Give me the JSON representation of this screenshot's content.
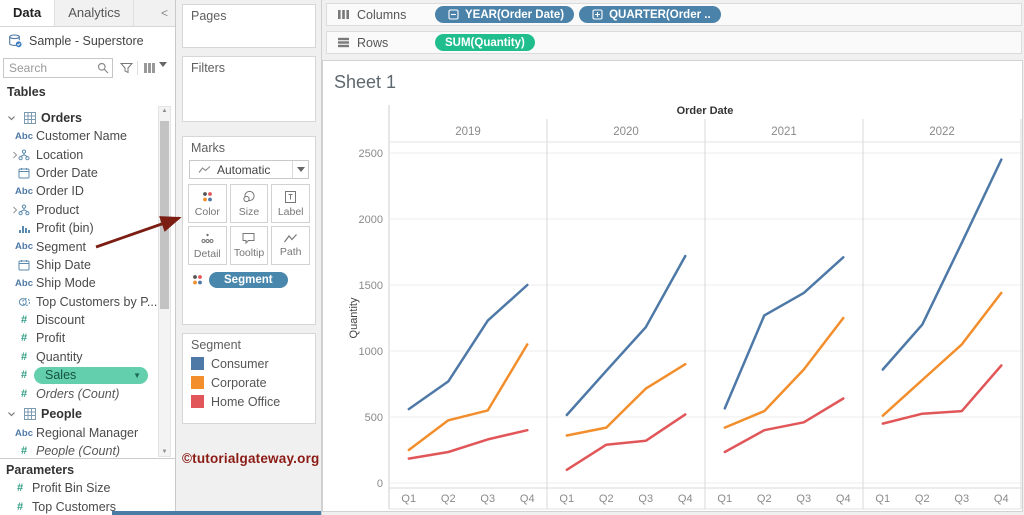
{
  "sidebar": {
    "tabs": [
      {
        "label": "Data",
        "active": true
      },
      {
        "label": "Analytics",
        "active": false
      }
    ],
    "collapse_glyph": "<",
    "datasource": "Sample - Superstore",
    "search_placeholder": "Search",
    "tables_label": "Tables",
    "sections": [
      {
        "name": "Orders",
        "icon": "table",
        "fields": [
          {
            "icon": "abc",
            "label": "Customer Name"
          },
          {
            "icon": "hierarchy",
            "label": "Location",
            "expandable": true
          },
          {
            "icon": "calendar",
            "label": "Order Date"
          },
          {
            "icon": "abc",
            "label": "Order ID"
          },
          {
            "icon": "hierarchy",
            "label": "Product",
            "expandable": true
          },
          {
            "icon": "histogram",
            "label": "Profit (bin)"
          },
          {
            "icon": "abc",
            "label": "Segment"
          },
          {
            "icon": "calendar",
            "label": "Ship Date"
          },
          {
            "icon": "abc",
            "label": "Ship Mode"
          },
          {
            "icon": "set",
            "label": "Top Customers by P..."
          },
          {
            "icon": "number",
            "label": "Discount"
          },
          {
            "icon": "number",
            "label": "Profit"
          },
          {
            "icon": "number",
            "label": "Quantity"
          },
          {
            "icon": "number",
            "label": "Sales",
            "selected": true
          },
          {
            "icon": "number",
            "label": "Orders (Count)",
            "italic": true
          }
        ]
      },
      {
        "name": "People",
        "icon": "table",
        "fields": [
          {
            "icon": "abc",
            "label": "Regional Manager"
          },
          {
            "icon": "number",
            "label": "People (Count)",
            "italic": true
          }
        ]
      }
    ],
    "parameters_label": "Parameters",
    "parameters": [
      {
        "icon": "number",
        "label": "Profit Bin Size"
      },
      {
        "icon": "number",
        "label": "Top Customers"
      }
    ]
  },
  "cards": {
    "pages_label": "Pages",
    "filters_label": "Filters"
  },
  "marks": {
    "title": "Marks",
    "mark_type": "Automatic",
    "buttons": [
      {
        "icon": "color-dots",
        "label": "Color"
      },
      {
        "icon": "size-circles",
        "label": "Size"
      },
      {
        "icon": "label-box",
        "label": "Label"
      },
      {
        "icon": "detail-dots",
        "label": "Detail"
      },
      {
        "icon": "tooltip-bubble",
        "label": "Tooltip"
      },
      {
        "icon": "path-line",
        "label": "Path"
      }
    ],
    "color_pill": "Segment"
  },
  "legend": {
    "title": "Segment",
    "items": [
      {
        "label": "Consumer",
        "color": "#4e79a7"
      },
      {
        "label": "Corporate",
        "color": "#f28e2b"
      },
      {
        "label": "Home Office",
        "color": "#e15759"
      }
    ]
  },
  "watermark": "©tutorialgateway.org",
  "shelves": {
    "columns": {
      "label": "Columns",
      "pills": [
        {
          "text": "YEAR(Order Date)",
          "icon": "minus-box",
          "kind": "dim"
        },
        {
          "text": "QUARTER(Order ..",
          "icon": "plus-box",
          "kind": "dim"
        }
      ]
    },
    "rows": {
      "label": "Rows",
      "pills": [
        {
          "text": "SUM(Quantity)",
          "kind": "mea"
        }
      ]
    }
  },
  "chart_data": {
    "type": "line",
    "sheet_title": "Sheet 1",
    "column_header": "Order Date",
    "years": [
      "2019",
      "2020",
      "2021",
      "2022"
    ],
    "quarters": [
      "Q1",
      "Q2",
      "Q3",
      "Q4"
    ],
    "ylabel": "Quantity",
    "ylim": [
      0,
      2500
    ],
    "yticks": [
      0,
      500,
      1000,
      1500,
      2000,
      2500
    ],
    "grid": true,
    "legend_position": "left-panel",
    "series": [
      {
        "name": "Consumer",
        "color": "#4e79a7",
        "values_by_year": [
          [
            560,
            770,
            1230,
            1500
          ],
          [
            515,
            850,
            1180,
            1720
          ],
          [
            565,
            1270,
            1440,
            1710
          ],
          [
            860,
            1200,
            1820,
            2450
          ]
        ]
      },
      {
        "name": "Corporate",
        "color": "#f28e2b",
        "values_by_year": [
          [
            250,
            475,
            550,
            1050
          ],
          [
            360,
            420,
            715,
            900
          ],
          [
            420,
            545,
            860,
            1250
          ],
          [
            510,
            780,
            1050,
            1440
          ]
        ]
      },
      {
        "name": "Home Office",
        "color": "#e15759",
        "values_by_year": [
          [
            185,
            235,
            330,
            400
          ],
          [
            100,
            290,
            320,
            520
          ],
          [
            235,
            400,
            460,
            640
          ],
          [
            450,
            525,
            545,
            890
          ]
        ]
      }
    ]
  },
  "colors": {
    "dimension_pill": "#4a82a9",
    "measure_pill": "#1fbe8c",
    "selected_field_bg": "#63cfad",
    "arrow": "#7b1d12",
    "watermark": "#8b1b15"
  }
}
